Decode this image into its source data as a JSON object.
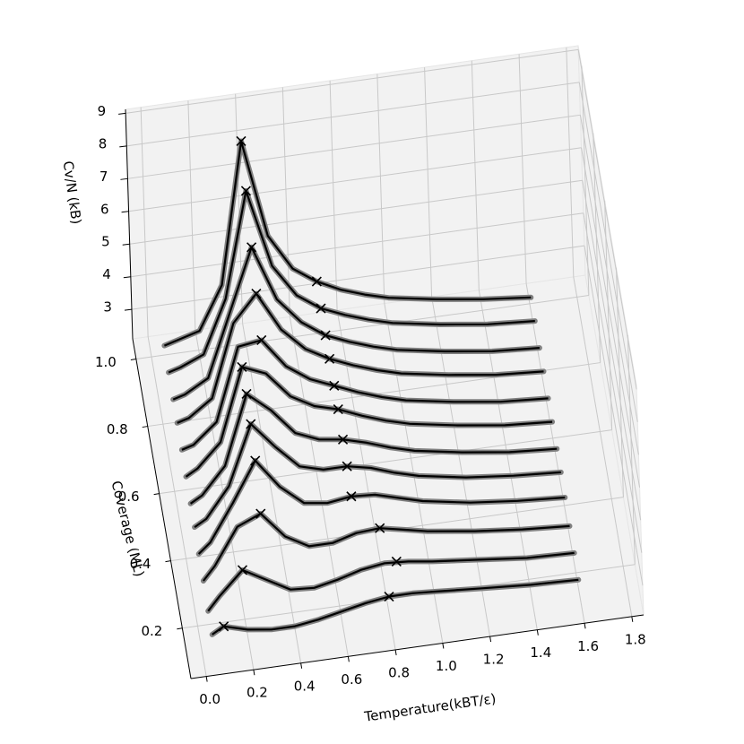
{
  "chart_data": {
    "type": "line3d",
    "xlabel": "Temperature(kBT/ε)",
    "ylabel": "Coverage (ML)",
    "zlabel": "Cv/N (kB)",
    "xlim": [
      -0.065,
      1.85
    ],
    "ylim": [
      0.05,
      1.06
    ],
    "zlim": [
      2.1,
      9.12
    ],
    "xticks": [
      {
        "value": 0,
        "label": "0.0"
      },
      0.2,
      0.4,
      0.6,
      0.8,
      {
        "value": 1,
        "label": "1.0"
      },
      1.2,
      1.4,
      1.6,
      1.8
    ],
    "yticks": [
      0.2,
      0.4,
      0.6,
      0.8,
      {
        "value": 1,
        "label": "1.0"
      }
    ],
    "zticks": [
      3,
      4,
      5,
      6,
      7,
      8,
      9
    ],
    "grid": true,
    "color": "#000000",
    "x": [
      0.05,
      0.1,
      0.2,
      0.3,
      0.4,
      0.5,
      0.6,
      0.7,
      0.8,
      0.9,
      1.0,
      1.2,
      1.4,
      1.6
    ],
    "series": [
      {
        "coverage": 0.15,
        "values": [
          2.3,
          2.5,
          2.3,
          2.2,
          2.2,
          2.3,
          2.45,
          2.6,
          2.7,
          2.7,
          2.65,
          2.55,
          2.45,
          2.4
        ],
        "marker_x": [
          0.1,
          0.8
        ],
        "marker_y": [
          2.5,
          2.7
        ]
      },
      {
        "coverage": 0.22,
        "values": [
          2.3,
          2.7,
          3.4,
          3.0,
          2.6,
          2.55,
          2.7,
          2.9,
          3.0,
          2.95,
          2.85,
          2.7,
          2.55,
          2.5
        ],
        "marker_x": [
          0.2,
          0.85
        ],
        "marker_y": [
          3.4,
          3.0
        ]
      },
      {
        "coverage": 0.3,
        "values": [
          2.4,
          2.8,
          3.9,
          4.2,
          3.4,
          3.0,
          3.0,
          3.2,
          3.25,
          3.1,
          2.95,
          2.75,
          2.6,
          2.5
        ],
        "marker_x": [
          0.3,
          0.8
        ],
        "marker_y": [
          4.2,
          3.25
        ]
      },
      {
        "coverage": 0.38,
        "values": [
          2.4,
          2.7,
          3.8,
          5.0,
          4.1,
          3.5,
          3.4,
          3.5,
          3.45,
          3.25,
          3.05,
          2.8,
          2.65,
          2.55
        ],
        "marker_x": [
          0.3,
          0.7
        ],
        "marker_y": [
          5.0,
          3.5
        ]
      },
      {
        "coverage": 0.45,
        "values": [
          2.5,
          2.7,
          3.6,
          5.4,
          4.6,
          3.9,
          3.7,
          3.7,
          3.55,
          3.3,
          3.1,
          2.85,
          2.7,
          2.6
        ],
        "marker_x": [
          0.3,
          0.7
        ],
        "marker_y": [
          5.4,
          3.7
        ]
      },
      {
        "coverage": 0.52,
        "values": [
          2.5,
          2.7,
          3.5,
          5.6,
          5.0,
          4.2,
          3.9,
          3.8,
          3.6,
          3.35,
          3.15,
          2.9,
          2.7,
          2.6
        ],
        "marker_x": [
          0.3,
          0.7
        ],
        "marker_y": [
          5.6,
          3.8
        ]
      },
      {
        "coverage": 0.6,
        "values": [
          2.5,
          2.7,
          3.4,
          5.6,
          5.3,
          4.5,
          4.1,
          3.9,
          3.6,
          3.35,
          3.15,
          2.9,
          2.7,
          2.6
        ],
        "marker_x": [
          0.3,
          0.7
        ],
        "marker_y": [
          5.6,
          3.9
        ]
      },
      {
        "coverage": 0.67,
        "values": [
          2.6,
          2.7,
          3.3,
          5.5,
          5.6,
          4.7,
          4.2,
          3.9,
          3.6,
          3.35,
          3.15,
          2.9,
          2.7,
          2.6
        ],
        "marker_x": [
          0.4,
          0.7
        ],
        "marker_y": [
          5.6,
          3.9
        ]
      },
      {
        "coverage": 0.75,
        "values": [
          2.6,
          2.7,
          3.2,
          5.4,
          6.2,
          5.0,
          4.3,
          3.9,
          3.6,
          3.35,
          3.15,
          2.9,
          2.7,
          2.6
        ],
        "marker_x": [
          0.4,
          0.7
        ],
        "marker_y": [
          6.2,
          3.9
        ]
      },
      {
        "coverage": 0.82,
        "values": [
          2.6,
          2.7,
          3.1,
          5.0,
          6.9,
          5.2,
          4.4,
          3.9,
          3.6,
          3.35,
          3.15,
          2.9,
          2.7,
          2.6
        ],
        "marker_x": [
          0.4,
          0.7
        ],
        "marker_y": [
          6.9,
          3.9
        ]
      },
      {
        "coverage": 0.9,
        "values": [
          2.6,
          2.7,
          3.0,
          4.6,
          7.8,
          5.4,
          4.4,
          3.9,
          3.6,
          3.35,
          3.15,
          2.9,
          2.7,
          2.6
        ],
        "marker_x": [
          0.4,
          0.7
        ],
        "marker_y": [
          7.8,
          3.9
        ]
      },
      {
        "coverage": 0.97,
        "values": [
          2.7,
          2.8,
          3.0,
          4.3,
          8.6,
          5.6,
          4.5,
          4.0,
          3.65,
          3.4,
          3.2,
          2.95,
          2.75,
          2.6
        ],
        "marker_x": [
          0.4,
          0.7
        ],
        "marker_y": [
          8.6,
          4.0
        ]
      }
    ]
  }
}
